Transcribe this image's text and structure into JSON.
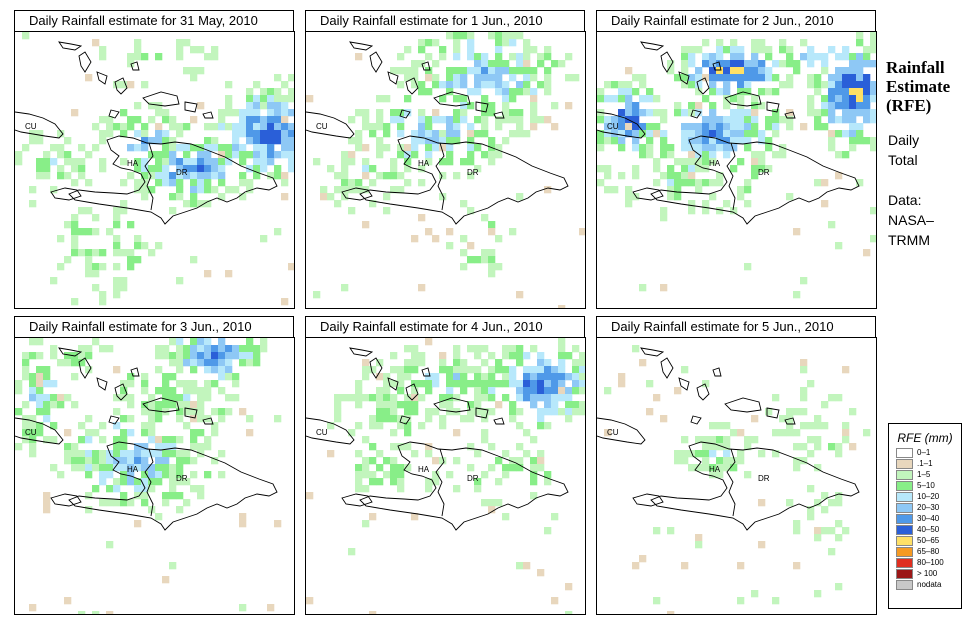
{
  "legend": {
    "title": "RFE (mm)",
    "classes": [
      {
        "label": "0–1",
        "color": "#ffffff"
      },
      {
        "label": ".1–1",
        "color": "#e8d7bd"
      },
      {
        "label": "1–5",
        "color": "#c2f5bd"
      },
      {
        "label": "5–10",
        "color": "#88ee88"
      },
      {
        "label": "10–20",
        "color": "#b7e8fb"
      },
      {
        "label": "20–30",
        "color": "#8ec8f5"
      },
      {
        "label": "30–40",
        "color": "#4f99e8"
      },
      {
        "label": "40–50",
        "color": "#2a5fd8"
      },
      {
        "label": "50–65",
        "color": "#ffe066"
      },
      {
        "label": "65–80",
        "color": "#f59a23"
      },
      {
        "label": "80–100",
        "color": "#e02f20"
      },
      {
        "label": "> 100",
        "color": "#9b1717"
      },
      {
        "label": "nodata",
        "color": "#c8c8c8"
      }
    ]
  },
  "side": {
    "title_line1": "Rainfall",
    "title_line2": "Estimate",
    "title_line3": "(RFE)",
    "daily": "Daily",
    "total": "Total",
    "data_label": "Data:",
    "source_line1": "NASA–",
    "source_line2": "TRMM"
  },
  "map_labels": {
    "cuba": "CU",
    "haiti": "HA",
    "dominican_republic": "DR"
  },
  "panels": [
    {
      "title": "Daily Rainfall estimate for  31 May, 2010",
      "rain_patches": [
        {
          "col": 36,
          "row": 14,
          "rx": 10,
          "ry": 8,
          "peak": 6,
          "density": 0.9
        },
        {
          "col": 25,
          "row": 19,
          "rx": 12,
          "ry": 6,
          "peak": 5,
          "density": 0.85
        },
        {
          "col": 18,
          "row": 15,
          "rx": 8,
          "ry": 6,
          "peak": 4,
          "density": 0.6
        },
        {
          "col": 12,
          "row": 30,
          "rx": 8,
          "ry": 9,
          "peak": 2,
          "density": 0.4
        },
        {
          "col": 5,
          "row": 18,
          "rx": 8,
          "ry": 5,
          "peak": 2,
          "density": 0.5
        },
        {
          "col": 20,
          "row": 4,
          "rx": 12,
          "ry": 5,
          "peak": 1,
          "density": 0.2
        }
      ]
    },
    {
      "title": "Daily Rainfall estimate for  1 Jun., 2010",
      "rain_patches": [
        {
          "col": 25,
          "row": 6,
          "rx": 14,
          "ry": 9,
          "peak": 4,
          "density": 0.7
        },
        {
          "col": 18,
          "row": 14,
          "rx": 14,
          "ry": 7,
          "peak": 4,
          "density": 0.65
        },
        {
          "col": 9,
          "row": 20,
          "rx": 9,
          "ry": 6,
          "peak": 2,
          "density": 0.5
        },
        {
          "col": 25,
          "row": 30,
          "rx": 6,
          "ry": 5,
          "peak": 2,
          "density": 0.3
        }
      ]
    },
    {
      "title": "Daily Rainfall estimate for  2 Jun., 2010",
      "rain_patches": [
        {
          "col": 36,
          "row": 8,
          "rx": 7,
          "ry": 10,
          "peak": 7,
          "density": 0.95
        },
        {
          "col": 19,
          "row": 5,
          "rx": 10,
          "ry": 5,
          "peak": 7,
          "density": 0.85
        },
        {
          "col": 4,
          "row": 12,
          "rx": 6,
          "ry": 7,
          "peak": 6,
          "density": 0.85
        },
        {
          "col": 17,
          "row": 14,
          "rx": 12,
          "ry": 7,
          "peak": 5,
          "density": 0.85
        },
        {
          "col": 12,
          "row": 20,
          "rx": 14,
          "ry": 7,
          "peak": 2,
          "density": 0.5
        },
        {
          "col": 30,
          "row": 3,
          "rx": 8,
          "ry": 4,
          "peak": 3,
          "density": 0.6
        }
      ]
    },
    {
      "title": "Daily Rainfall estimate for  3 Jun., 2010",
      "rain_patches": [
        {
          "col": 28,
          "row": 2,
          "rx": 8,
          "ry": 5,
          "peak": 6,
          "density": 0.9
        },
        {
          "col": 17,
          "row": 17,
          "rx": 13,
          "ry": 9,
          "peak": 4,
          "density": 0.75
        },
        {
          "col": 3,
          "row": 8,
          "rx": 6,
          "ry": 9,
          "peak": 3,
          "density": 0.6
        },
        {
          "col": 22,
          "row": 8,
          "rx": 12,
          "ry": 8,
          "peak": 2,
          "density": 0.55
        },
        {
          "col": 8,
          "row": 2,
          "rx": 6,
          "ry": 3,
          "peak": 2,
          "density": 0.5
        }
      ]
    },
    {
      "title": "Daily Rainfall estimate for  4 Jun., 2010",
      "rain_patches": [
        {
          "col": 33,
          "row": 6,
          "rx": 9,
          "ry": 7,
          "peak": 6,
          "density": 0.9
        },
        {
          "col": 20,
          "row": 6,
          "rx": 15,
          "ry": 6,
          "peak": 3,
          "density": 0.7
        },
        {
          "col": 12,
          "row": 10,
          "rx": 10,
          "ry": 5,
          "peak": 2,
          "density": 0.55
        },
        {
          "col": 12,
          "row": 18,
          "rx": 8,
          "ry": 5,
          "peak": 2,
          "density": 0.35
        },
        {
          "col": 28,
          "row": 18,
          "rx": 10,
          "ry": 6,
          "peak": 2,
          "density": 0.35
        }
      ]
    },
    {
      "title": "Daily Rainfall estimate for  5 Jun., 2010",
      "rain_patches": [
        {
          "col": 17,
          "row": 16,
          "rx": 7,
          "ry": 5,
          "peak": 2,
          "density": 0.6
        },
        {
          "col": 30,
          "row": 12,
          "rx": 9,
          "ry": 8,
          "peak": 1,
          "density": 0.35
        },
        {
          "col": 31,
          "row": 25,
          "rx": 6,
          "ry": 6,
          "peak": 1,
          "density": 0.3
        }
      ]
    }
  ]
}
